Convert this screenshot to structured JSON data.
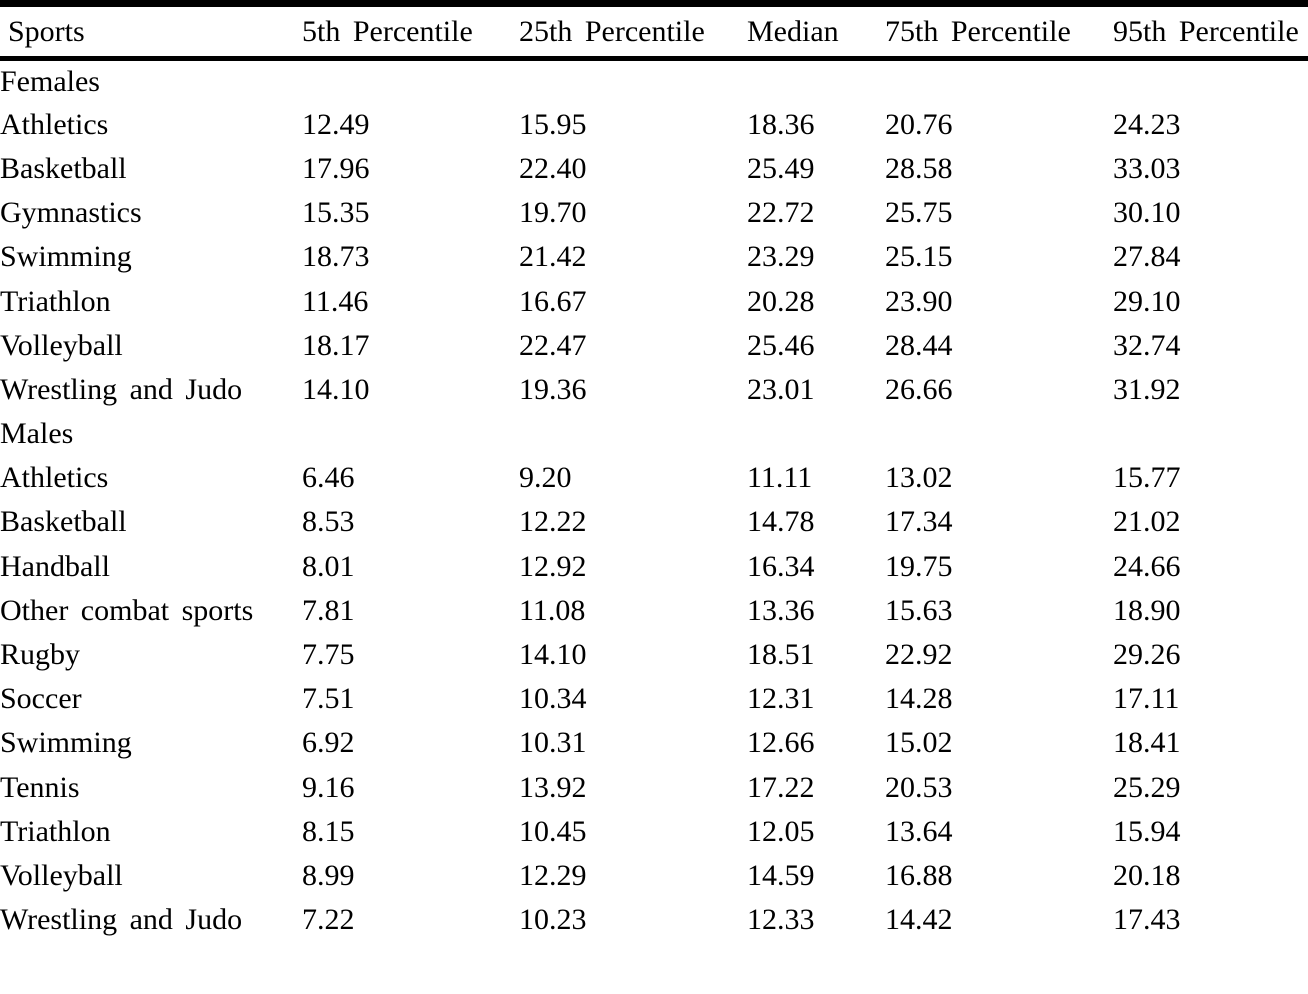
{
  "table": {
    "columns": [
      "Sports",
      "5th Percentile",
      "25th Percentile",
      "Median",
      "75th Percentile",
      "95th Percentile"
    ],
    "sections": [
      {
        "label": "Females",
        "rows": [
          {
            "sport": "Athletics",
            "values": [
              "12.49",
              "15.95",
              "18.36",
              "20.76",
              "24.23"
            ]
          },
          {
            "sport": "Basketball",
            "values": [
              "17.96",
              "22.40",
              "25.49",
              "28.58",
              "33.03"
            ]
          },
          {
            "sport": "Gymnastics",
            "values": [
              "15.35",
              "19.70",
              "22.72",
              "25.75",
              "30.10"
            ]
          },
          {
            "sport": "Swimming",
            "values": [
              "18.73",
              "21.42",
              "23.29",
              "25.15",
              "27.84"
            ]
          },
          {
            "sport": "Triathlon",
            "values": [
              "11.46",
              "16.67",
              "20.28",
              "23.90",
              "29.10"
            ]
          },
          {
            "sport": "Volleyball",
            "values": [
              "18.17",
              "22.47",
              "25.46",
              "28.44",
              "32.74"
            ]
          },
          {
            "sport": "Wrestling and Judo",
            "values": [
              "14.10",
              "19.36",
              "23.01",
              "26.66",
              "31.92"
            ]
          }
        ]
      },
      {
        "label": "Males",
        "rows": [
          {
            "sport": "Athletics",
            "values": [
              "6.46",
              "9.20",
              "11.11",
              "13.02",
              "15.77"
            ]
          },
          {
            "sport": "Basketball",
            "values": [
              "8.53",
              "12.22",
              "14.78",
              "17.34",
              "21.02"
            ]
          },
          {
            "sport": "Handball",
            "values": [
              "8.01",
              "12.92",
              "16.34",
              "19.75",
              "24.66"
            ]
          },
          {
            "sport": "Other combat sports",
            "values": [
              "7.81",
              "11.08",
              "13.36",
              "15.63",
              "18.90"
            ]
          },
          {
            "sport": "Rugby",
            "values": [
              "7.75",
              "14.10",
              "18.51",
              "22.92",
              "29.26"
            ]
          },
          {
            "sport": "Soccer",
            "values": [
              "7.51",
              "10.34",
              "12.31",
              "14.28",
              "17.11"
            ]
          },
          {
            "sport": "Swimming",
            "values": [
              "6.92",
              "10.31",
              "12.66",
              "15.02",
              "18.41"
            ]
          },
          {
            "sport": "Tennis",
            "values": [
              "9.16",
              "13.92",
              "17.22",
              "20.53",
              "25.29"
            ]
          },
          {
            "sport": "Triathlon",
            "values": [
              "8.15",
              "10.45",
              "12.05",
              "13.64",
              "15.94"
            ]
          },
          {
            "sport": "Volleyball",
            "values": [
              "8.99",
              "12.29",
              "14.59",
              "16.88",
              "20.18"
            ]
          },
          {
            "sport": "Wrestling and Judo",
            "values": [
              "7.22",
              "10.23",
              "12.33",
              "14.42",
              "17.43"
            ]
          }
        ]
      }
    ]
  },
  "colors": {
    "text": "#000000",
    "rule": "#000000",
    "background": "#ffffff"
  }
}
